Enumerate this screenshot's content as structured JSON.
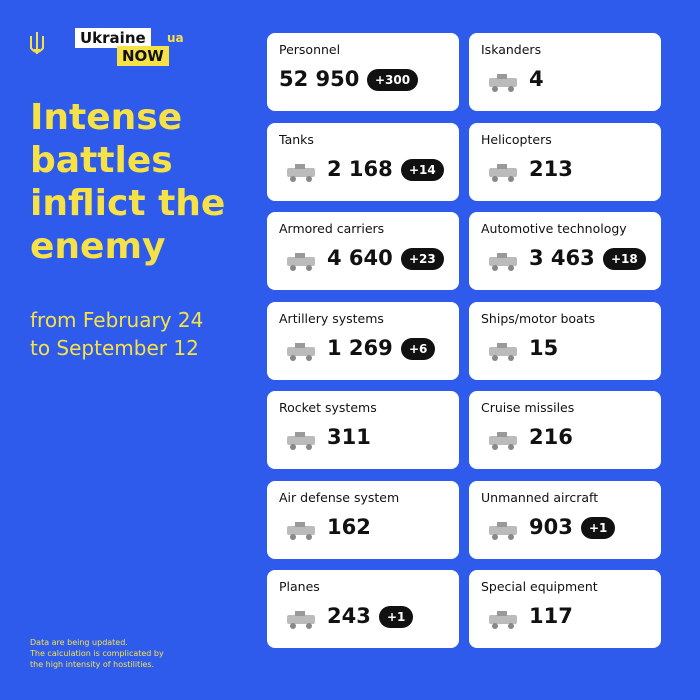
{
  "logo": {
    "line1": "Ukraine",
    "line2": "NOW",
    "suffix": "ua"
  },
  "headline": [
    "Intense",
    "battles",
    "inflict the",
    "enemy"
  ],
  "period": [
    "from February 24",
    "to September 12"
  ],
  "footnote": [
    "Data are being updated.",
    "The calculation is complicated by",
    "the high intensity of hostilities."
  ],
  "cards": [
    {
      "label": "Personnel",
      "value": "52 950",
      "change": "+300"
    },
    {
      "label": "Iskanders",
      "value": "4"
    },
    {
      "label": "Tanks",
      "value": "2 168",
      "change": "+14"
    },
    {
      "label": "Helicopters",
      "value": "213"
    },
    {
      "label": "Armored carriers",
      "value": "4 640",
      "change": "+23"
    },
    {
      "label": "Automotive technology",
      "value": "3 463",
      "change": "+18"
    },
    {
      "label": "Artillery systems",
      "value": "1 269",
      "change": "+6"
    },
    {
      "label": "Ships/motor boats",
      "value": "15"
    },
    {
      "label": "Rocket systems",
      "value": "311"
    },
    {
      "label": "Cruise missiles",
      "value": "216"
    },
    {
      "label": "Air defense system",
      "value": "162"
    },
    {
      "label": "Unmanned aircraft",
      "value": "903",
      "change": "+1"
    },
    {
      "label": "Planes",
      "value": "243",
      "change": "+1"
    },
    {
      "label": "Special equipment",
      "value": "117"
    }
  ]
}
